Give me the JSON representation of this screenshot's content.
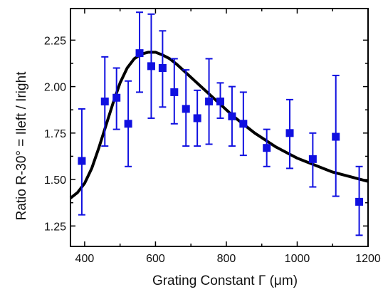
{
  "chart_data": {
    "type": "scatter",
    "xlabel": "Grating Constant Γ (μm)",
    "ylabel": "Ratio R-30° = Ileft / Iright",
    "xlim": [
      360,
      1200
    ],
    "ylim": [
      1.14,
      2.42
    ],
    "x_ticks": [
      400,
      600,
      800,
      1000,
      1200
    ],
    "x_tick_labels": [
      "400",
      "600",
      "800",
      "1000",
      "1200"
    ],
    "y_ticks": [
      1.25,
      1.5,
      1.75,
      2.0,
      2.25
    ],
    "y_tick_labels": [
      "1.25",
      "1.50",
      "1.75",
      "2.00",
      "2.25"
    ],
    "grid": false,
    "legend": "none",
    "series": [
      {
        "kind": "data-with-error-bars",
        "marker": "square",
        "color": "#1010e0",
        "points": [
          {
            "x": 392,
            "y": 1.6,
            "yerr_low": 1.31,
            "yerr_high": 1.88
          },
          {
            "x": 457,
            "y": 1.92,
            "yerr_low": 1.68,
            "yerr_high": 2.16
          },
          {
            "x": 490,
            "y": 1.94,
            "yerr_low": 1.77,
            "yerr_high": 2.1
          },
          {
            "x": 523,
            "y": 1.8,
            "yerr_low": 1.57,
            "yerr_high": 2.03
          },
          {
            "x": 555,
            "y": 2.18,
            "yerr_low": 1.97,
            "yerr_high": 2.4
          },
          {
            "x": 588,
            "y": 2.11,
            "yerr_low": 1.83,
            "yerr_high": 2.39
          },
          {
            "x": 620,
            "y": 2.1,
            "yerr_low": 1.89,
            "yerr_high": 2.3
          },
          {
            "x": 653,
            "y": 1.97,
            "yerr_low": 1.8,
            "yerr_high": 2.15
          },
          {
            "x": 686,
            "y": 1.88,
            "yerr_low": 1.68,
            "yerr_high": 2.09
          },
          {
            "x": 718,
            "y": 1.83,
            "yerr_low": 1.68,
            "yerr_high": 1.98
          },
          {
            "x": 751,
            "y": 1.92,
            "yerr_low": 1.69,
            "yerr_high": 2.15
          },
          {
            "x": 783,
            "y": 1.92,
            "yerr_low": 1.83,
            "yerr_high": 2.02
          },
          {
            "x": 816,
            "y": 1.84,
            "yerr_low": 1.68,
            "yerr_high": 2.0
          },
          {
            "x": 848,
            "y": 1.8,
            "yerr_low": 1.63,
            "yerr_high": 1.97
          },
          {
            "x": 914,
            "y": 1.67,
            "yerr_low": 1.57,
            "yerr_high": 1.77
          },
          {
            "x": 979,
            "y": 1.75,
            "yerr_low": 1.56,
            "yerr_high": 1.93
          },
          {
            "x": 1044,
            "y": 1.61,
            "yerr_low": 1.46,
            "yerr_high": 1.75
          },
          {
            "x": 1109,
            "y": 1.73,
            "yerr_low": 1.41,
            "yerr_high": 2.06
          },
          {
            "x": 1175,
            "y": 1.38,
            "yerr_low": 1.2,
            "yerr_high": 1.57
          }
        ]
      },
      {
        "kind": "fit-curve",
        "color": "#000000",
        "x": [
          360,
          380,
          400,
          420,
          440,
          460,
          480,
          500,
          520,
          540,
          560,
          580,
          600,
          620,
          640,
          660,
          680,
          700,
          720,
          740,
          760,
          780,
          800,
          820,
          840,
          860,
          880,
          900,
          920,
          940,
          960,
          980,
          1000,
          1020,
          1040,
          1060,
          1080,
          1100,
          1120,
          1140,
          1160,
          1180,
          1200
        ],
        "y": [
          1.4,
          1.43,
          1.48,
          1.56,
          1.67,
          1.79,
          1.91,
          2.02,
          2.1,
          2.15,
          2.175,
          2.185,
          2.185,
          2.17,
          2.15,
          2.12,
          2.085,
          2.05,
          2.015,
          1.98,
          1.945,
          1.91,
          1.875,
          1.84,
          1.81,
          1.78,
          1.75,
          1.725,
          1.7,
          1.675,
          1.655,
          1.635,
          1.615,
          1.6,
          1.585,
          1.57,
          1.555,
          1.54,
          1.53,
          1.52,
          1.51,
          1.5,
          1.49
        ]
      }
    ]
  }
}
